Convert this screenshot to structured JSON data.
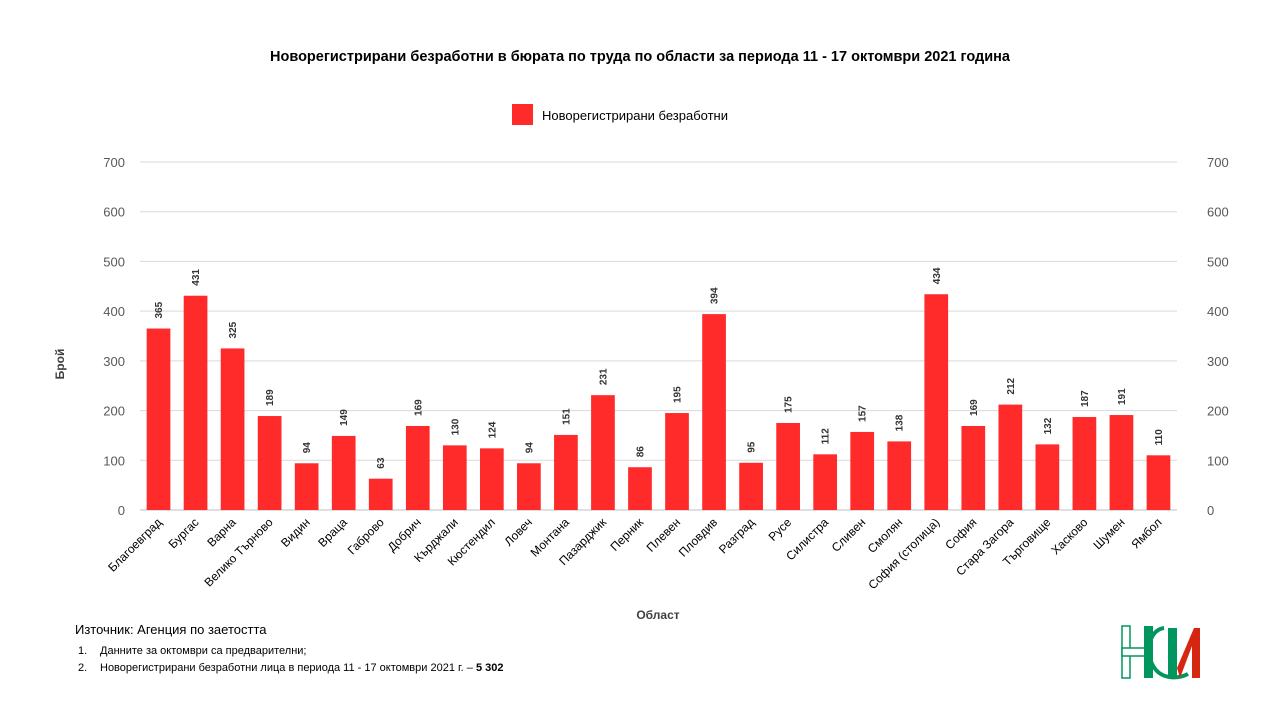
{
  "chart_data": {
    "type": "bar",
    "title": "Новорегистрирани безработни в бюрата по труда по области за периода 11 - 17 октомври 2021 година",
    "xlabel": "Област",
    "ylabel": "Брой",
    "ylim": [
      0,
      700
    ],
    "yticks": [
      "0",
      "100",
      "200",
      "300",
      "400",
      "500",
      "600",
      "700"
    ],
    "grid": true,
    "legend_position": "top",
    "bar_color": "#ff2a2a",
    "series": [
      {
        "name": "Новорегистрирани безработни",
        "values": [
          365,
          431,
          325,
          189,
          94,
          149,
          63,
          169,
          130,
          124,
          94,
          151,
          231,
          86,
          195,
          394,
          95,
          175,
          112,
          157,
          138,
          434,
          169,
          212,
          132,
          187,
          191,
          110
        ]
      }
    ],
    "categories": [
      "Благоевград",
      "Бургас",
      "Варна",
      "Велико Търново",
      "Видин",
      "Враца",
      "Габрово",
      "Добрич",
      "Кърджали",
      "Кюстендил",
      "Ловеч",
      "Монтана",
      "Пазарджик",
      "Перник",
      "Плевен",
      "Пловдив",
      "Разград",
      "Русе",
      "Силистра",
      "Сливен",
      "Смолян",
      "София (столица)",
      "София",
      "Стара Загора",
      "Търговище",
      "Хасково",
      "Шумен",
      "Ямбол"
    ]
  },
  "footer": {
    "source": "Източник: Агенция по заетостта",
    "notes": [
      {
        "num": "1.",
        "text": "Данните за октомври са предварителни;"
      },
      {
        "num": "2.",
        "text": "Новорегистрирани безработни лица в периода 11 - 17 октомври 2021 г. – ",
        "bold": "5 302"
      }
    ]
  },
  "logo": {
    "letters": "НСИ",
    "colors": {
      "white": "#ffffff",
      "green": "#00965e",
      "red": "#d62612"
    }
  }
}
